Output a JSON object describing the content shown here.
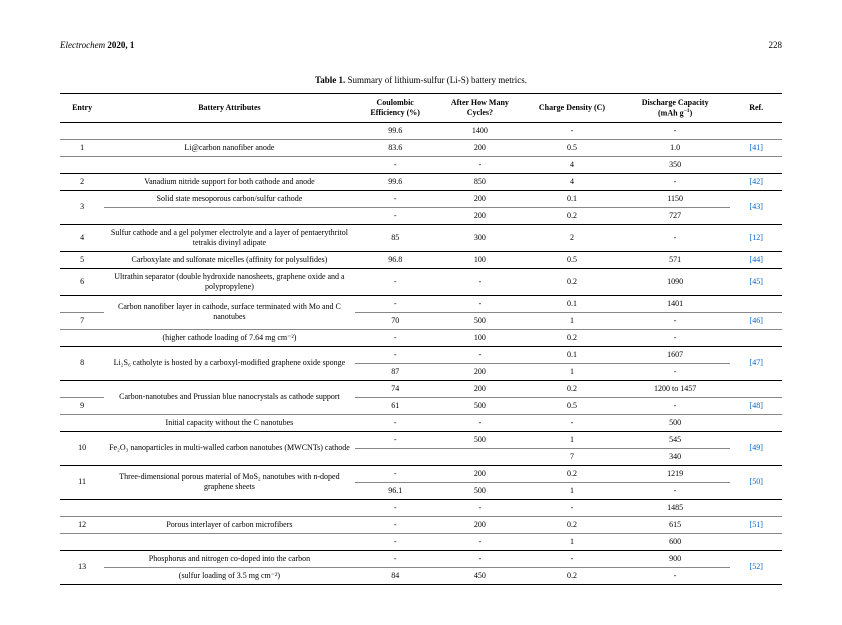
{
  "header": {
    "journal": "Electrochem",
    "year_vol": "2020, 1",
    "page": "228"
  },
  "table": {
    "title_prefix": "Table 1.",
    "title_text": "Summary of lithium-sulfur (Li-S) battery metrics.",
    "columns": {
      "entry": "Entry",
      "attr": "Battery Attributes",
      "ce": "Coulombic Efficiency (%)",
      "cycles": "After How Many Cycles?",
      "cd": "Charge Density (C)",
      "dc_line1": "Discharge Capacity",
      "dc_line2": "(mAh g",
      "dc_sup": "−1",
      "dc_close": ")",
      "ref": "Ref."
    },
    "rows": [
      {
        "entry": "",
        "attr": "",
        "ce": "99.6",
        "cycles": "1400",
        "cd": "-",
        "dc": "-",
        "ref": "",
        "cls": "thin-b"
      },
      {
        "entry": "1",
        "attr": "Li@carbon nanofiber anode",
        "ce": "83.6",
        "cycles": "200",
        "cd": "0.5",
        "dc": "1.0",
        "ref": "[41]",
        "cls": "thin-b"
      },
      {
        "entry": "",
        "attr": "",
        "ce": "-",
        "cycles": "-",
        "cd": "4",
        "dc": "350",
        "ref": "",
        "cls": "sub-b"
      },
      {
        "entry": "2",
        "attr": "Vanadium nitride support for both cathode and anode",
        "ce": "99.6",
        "cycles": "850",
        "cd": "4",
        "dc": "-",
        "ref": "[42]",
        "cls": "sub-b"
      },
      {
        "entry": "3",
        "attr": "Solid state mesoporous carbon/sulfur cathode",
        "ce": "-",
        "cycles": "200",
        "cd": "0.1",
        "dc": "1150",
        "ref": "[43]",
        "cls": "thin-b",
        "rowspan": 2
      },
      {
        "entry": "",
        "attr": "",
        "ce": "-",
        "cycles": "200",
        "cd": "0.2",
        "dc": "727",
        "ref": "",
        "cls": "sub-b"
      },
      {
        "entry": "4",
        "attr": "Sulfur cathode and a gel polymer electrolyte and a layer of pentaerythritol tetrakis divinyl adipate",
        "ce": "85",
        "cycles": "300",
        "cd": "2",
        "dc": "-",
        "ref": "[12]",
        "cls": "sub-b"
      },
      {
        "entry": "5",
        "attr": "Carboxylate and sulfonate micelles (affinity for polysulfides)",
        "ce": "96.8",
        "cycles": "100",
        "cd": "0.5",
        "dc": "571",
        "ref": "[44]",
        "cls": "sub-b"
      },
      {
        "entry": "6",
        "attr": "Ultrathin separator (double hydroxide nanosheets, graphene oxide and a polypropylene)",
        "ce": "-",
        "cycles": "-",
        "cd": "0.2",
        "dc": "1090",
        "ref": "[45]",
        "cls": "sub-b"
      },
      {
        "entry": "",
        "attr": "Carbon nanofiber layer in cathode, surface terminated with Mo and C nanotubes",
        "ce": "-",
        "cycles": "-",
        "cd": "0.1",
        "dc": "1401",
        "ref": "",
        "cls": "thin-b",
        "attr_rowspan": 2
      },
      {
        "entry": "7",
        "attr": "",
        "ce": "70",
        "cycles": "500",
        "cd": "1",
        "dc": "-",
        "ref": "[46]",
        "cls": "thin-b"
      },
      {
        "entry": "",
        "attr": "(higher cathode loading of 7.64 mg cm⁻²)",
        "ce": "-",
        "cycles": "100",
        "cd": "0.2",
        "dc": "-",
        "ref": "",
        "cls": "sub-b"
      },
      {
        "entry": "8",
        "attr": "Li₂S₆ catholyte is hosted by a carboxyl-modified graphene oxide sponge",
        "ce": "-",
        "cycles": "-",
        "cd": "0.1",
        "dc": "1607",
        "ref": "[47]",
        "cls": "thin-b",
        "rowspan": 2,
        "attr_rowspan": 2
      },
      {
        "entry": "",
        "attr": "",
        "ce": "87",
        "cycles": "200",
        "cd": "1",
        "dc": "-",
        "ref": "",
        "cls": "sub-b"
      },
      {
        "entry": "",
        "attr": "Carbon-nanotubes and Prussian blue nanocrystals as cathode support",
        "ce": "74",
        "cycles": "200",
        "cd": "0.2",
        "dc": "1200 to 1457",
        "ref": "",
        "cls": "thin-b",
        "attr_rowspan": 2
      },
      {
        "entry": "9",
        "attr": "",
        "ce": "61",
        "cycles": "500",
        "cd": "0.5",
        "dc": "-",
        "ref": "[48]",
        "cls": "thin-b"
      },
      {
        "entry": "",
        "attr": "Initial capacity without the C nanotubes",
        "ce": "-",
        "cycles": "-",
        "cd": "-",
        "dc": "500",
        "ref": "",
        "cls": "sub-b"
      },
      {
        "entry": "10",
        "attr": "Fe₂O₃ nanoparticles in multi-walled carbon nanotubes (MWCNTs) cathode",
        "ce": "-",
        "cycles": "500",
        "cd": "1",
        "dc": "545",
        "ref": "[49]",
        "cls": "thin-b",
        "rowspan": 2,
        "attr_rowspan": 2
      },
      {
        "entry": "",
        "attr": "",
        "ce": "",
        "cycles": "",
        "cd": "7",
        "dc": "340",
        "ref": "",
        "cls": "sub-b"
      },
      {
        "entry": "11",
        "attr": "Three-dimensional porous material of MoS₂ nanotubes with n-doped graphene sheets",
        "ce": "-",
        "cycles": "200",
        "cd": "0.2",
        "dc": "1219",
        "ref": "[50]",
        "cls": "thin-b",
        "rowspan": 2,
        "attr_rowspan": 2
      },
      {
        "entry": "",
        "attr": "",
        "ce": "96.1",
        "cycles": "500",
        "cd": "1",
        "dc": "-",
        "ref": "",
        "cls": "sub-b"
      },
      {
        "entry": "",
        "attr": "",
        "ce": "-",
        "cycles": "-",
        "cd": "-",
        "dc": "1485",
        "ref": "",
        "cls": "thin-b"
      },
      {
        "entry": "12",
        "attr": "Porous interlayer of carbon microfibers",
        "ce": "-",
        "cycles": "200",
        "cd": "0.2",
        "dc": "615",
        "ref": "[51]",
        "cls": "thin-b"
      },
      {
        "entry": "",
        "attr": "",
        "ce": "-",
        "cycles": "-",
        "cd": "1",
        "dc": "600",
        "ref": "",
        "cls": "sub-b"
      },
      {
        "entry": "13",
        "attr": "Phosphorus and nitrogen co-doped into the carbon",
        "ce": "-",
        "cycles": "-",
        "cd": "-",
        "dc": "900",
        "ref": "[52]",
        "cls": "thin-b",
        "rowspan": 2
      },
      {
        "entry": "",
        "attr": "(sulfur loading of 3.5 mg cm⁻²)",
        "ce": "84",
        "cycles": "450",
        "cd": "0.2",
        "dc": "-",
        "ref": "",
        "cls": "sub-b"
      }
    ]
  }
}
